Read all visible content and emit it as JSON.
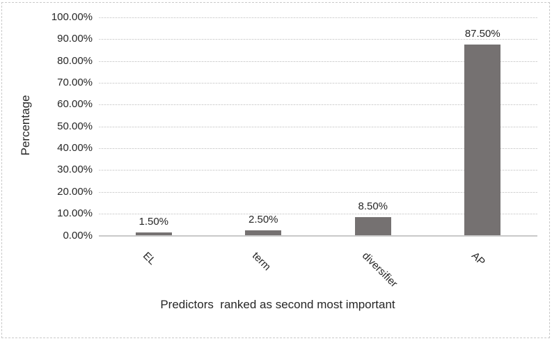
{
  "chart_data": {
    "type": "bar",
    "categories": [
      "EL",
      "term",
      "diversifier",
      "AP"
    ],
    "values": [
      1.5,
      2.5,
      8.5,
      87.5
    ],
    "data_labels": [
      "1.50%",
      "2.50%",
      "8.50%",
      "87.50%"
    ],
    "title": "",
    "xlabel": "Predictors  ranked as second most important",
    "ylabel": "Percentage",
    "ylim": [
      0,
      100
    ],
    "ytick_step": 10,
    "ytick_labels": [
      "0.00%",
      "10.00%",
      "20.00%",
      "30.00%",
      "40.00%",
      "50.00%",
      "60.00%",
      "70.00%",
      "80.00%",
      "90.00%",
      "100.00%"
    ],
    "grid": true,
    "legend": "none",
    "bar_color": "#757171",
    "gridline_color": "#d2d2d2",
    "axis_line_color": "#c9c9c9",
    "text_color": "#262626",
    "border_color": "#c9c9c9"
  }
}
